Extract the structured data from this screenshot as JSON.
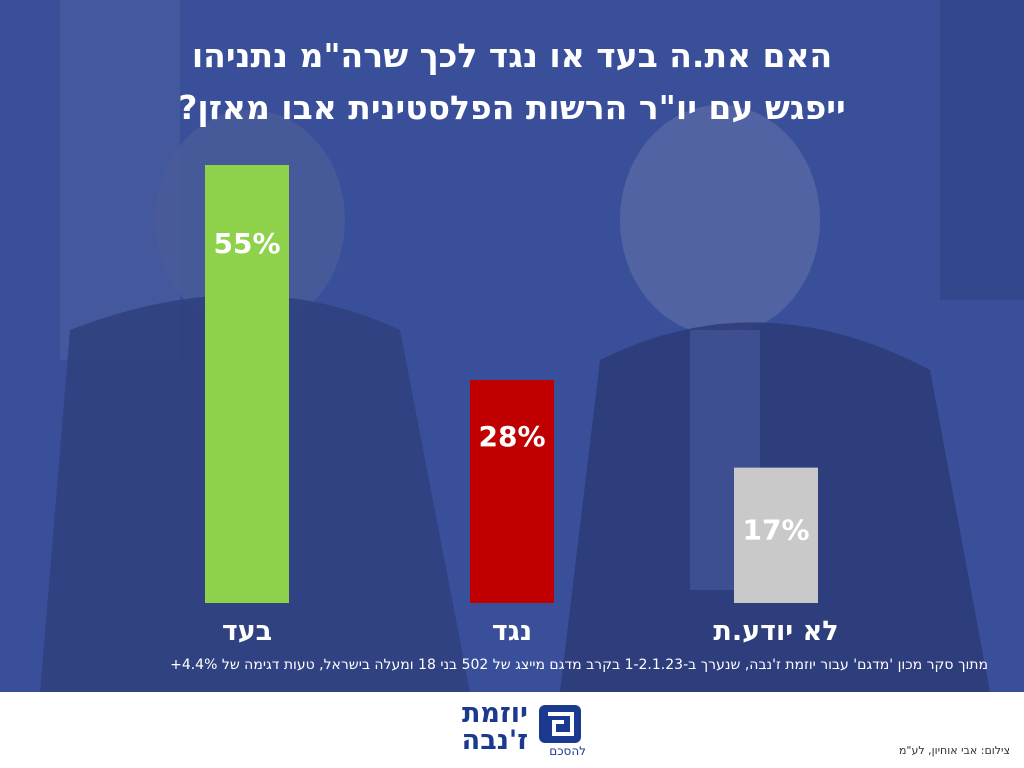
{
  "title_lines": [
    "האם את.ה בעד או נגד לכך שרה\"מ נתניהו",
    "ייפגש עם יו\"ר הרשות הפלסטינית אבו מאזן?"
  ],
  "footnote": "מתוך סקר מכון 'מדגם' עבור יוזמת ז'נבה, שנערך ב-1-2.1.23 בקרב מדגם מייצג של 502 בני 18 ומעלה בישראל, טעות דגימה של 4.4%+",
  "credit": "צילום: אבי אוחיון, לע\"מ",
  "logo": {
    "line1": "יוזמת",
    "line2": "ז'נבה",
    "tagline": "להסכם"
  },
  "colors": {
    "background_overlay": "#3a4f9a",
    "title_text": "#ffffff",
    "logo_blue": "#1b3a8f"
  },
  "chart_data": {
    "type": "bar",
    "title": "האם את.ה בעד או נגד לכך שרה\"מ נתניהו ייפגש עם יו\"ר הרשות הפלסטינית אבו מאזן?",
    "categories": [
      "בעד",
      "נגד",
      "לא יודע.ת"
    ],
    "values": [
      55,
      28,
      17
    ],
    "value_labels": [
      "55%",
      "28%",
      "17%"
    ],
    "bar_colors": [
      "#8ed14b",
      "#c00000",
      "#c9c9c9"
    ],
    "unit": "%",
    "ylim": [
      0,
      55
    ],
    "grid": false,
    "legend": "none",
    "xlabel": "",
    "ylabel": ""
  }
}
